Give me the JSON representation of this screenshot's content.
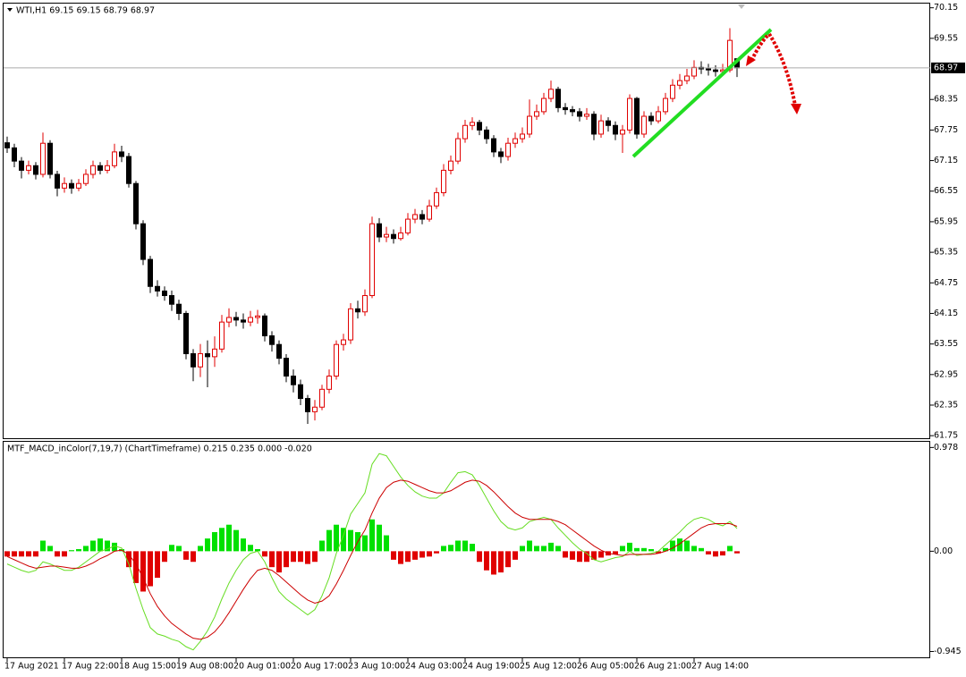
{
  "chart_data": [
    {
      "type": "candlestick",
      "title": "WTI,H1  69.15 69.15 68.79 68.97",
      "open": [
        67.5,
        67.4,
        67.14,
        66.96,
        67.05,
        66.88,
        67.49,
        66.88,
        66.61,
        66.7,
        66.61,
        66.7,
        66.88,
        67.05,
        66.96,
        67.05,
        67.32,
        67.23,
        66.7,
        65.91,
        65.21,
        64.68,
        64.59,
        64.5,
        64.33,
        64.15,
        63.36,
        63.1,
        63.36,
        63.3,
        63.45,
        63.98,
        64.07,
        64.02,
        63.98,
        64.07,
        64.1,
        63.71,
        63.54,
        63.27,
        62.92,
        62.75,
        62.48,
        62.22,
        62.31,
        62.66,
        62.92,
        63.54,
        63.63,
        64.24,
        64.18,
        64.5,
        65.91,
        65.65,
        65.7,
        65.62,
        65.73,
        66.0,
        66.09,
        66.0,
        66.26,
        66.52,
        66.96,
        67.14,
        67.58,
        67.84,
        67.9,
        67.75,
        67.58,
        67.32,
        67.23,
        67.49,
        67.58,
        67.67,
        68.02,
        68.11,
        68.37,
        68.55,
        68.19,
        68.15,
        68.11,
        68.02,
        68.06,
        67.67,
        67.93,
        67.84,
        67.67,
        67.75,
        68.37,
        67.67,
        68.02,
        67.93,
        68.11,
        68.37,
        68.63,
        68.72,
        68.81,
        68.98,
        68.95,
        68.93,
        68.9,
        68.93,
        69.15
      ],
      "high": [
        67.62,
        67.48,
        67.22,
        67.15,
        67.12,
        67.7,
        67.55,
        66.95,
        66.82,
        66.78,
        66.79,
        66.98,
        67.15,
        67.12,
        67.16,
        67.48,
        67.44,
        67.3,
        66.75,
        65.98,
        65.28,
        64.8,
        64.68,
        64.6,
        64.42,
        64.2,
        63.45,
        63.55,
        63.62,
        63.7,
        64.12,
        64.25,
        64.18,
        64.15,
        64.2,
        64.22,
        64.15,
        63.8,
        63.62,
        63.35,
        63.05,
        62.85,
        62.55,
        62.45,
        62.75,
        63.05,
        63.62,
        63.75,
        64.35,
        64.4,
        64.62,
        66.05,
        66.02,
        65.85,
        65.8,
        65.85,
        66.12,
        66.2,
        66.18,
        66.38,
        66.62,
        67.08,
        67.25,
        67.7,
        67.95,
        68.0,
        67.95,
        67.82,
        67.65,
        67.4,
        67.6,
        67.7,
        67.8,
        68.35,
        68.25,
        68.48,
        68.72,
        68.6,
        68.28,
        68.22,
        68.18,
        68.18,
        68.12,
        68.05,
        68.0,
        67.92,
        67.85,
        68.45,
        68.4,
        68.12,
        68.1,
        68.22,
        68.48,
        68.75,
        68.85,
        68.95,
        69.12,
        69.1,
        69.05,
        69.02,
        69.05,
        69.75,
        69.15
      ],
      "low": [
        67.3,
        67.02,
        66.8,
        66.88,
        66.78,
        66.82,
        66.8,
        66.45,
        66.52,
        66.5,
        66.55,
        66.65,
        66.8,
        66.88,
        66.9,
        67.0,
        67.12,
        66.62,
        65.8,
        65.1,
        64.55,
        64.48,
        64.4,
        64.2,
        64.02,
        63.25,
        62.82,
        62.9,
        62.7,
        63.1,
        63.38,
        63.88,
        63.9,
        63.85,
        63.9,
        63.95,
        63.6,
        63.4,
        63.15,
        62.8,
        62.6,
        62.35,
        61.98,
        62.05,
        62.25,
        62.58,
        62.85,
        63.42,
        63.55,
        64.05,
        64.1,
        64.45,
        65.55,
        65.55,
        65.52,
        65.58,
        65.68,
        65.92,
        65.9,
        65.95,
        66.2,
        66.45,
        66.88,
        67.08,
        67.5,
        67.75,
        67.65,
        67.48,
        67.22,
        67.1,
        67.15,
        67.4,
        67.5,
        67.6,
        67.95,
        68.05,
        68.3,
        68.1,
        68.05,
        68.02,
        67.92,
        67.95,
        67.55,
        67.6,
        67.72,
        67.55,
        67.3,
        67.68,
        67.58,
        67.6,
        67.85,
        67.88,
        68.05,
        68.3,
        68.55,
        68.65,
        68.75,
        68.85,
        68.82,
        68.8,
        68.82,
        68.88,
        68.79
      ],
      "close": [
        67.4,
        67.14,
        66.96,
        67.05,
        66.88,
        67.49,
        66.88,
        66.61,
        66.7,
        66.61,
        66.7,
        66.88,
        67.05,
        66.96,
        67.05,
        67.32,
        67.23,
        66.7,
        65.91,
        65.21,
        64.68,
        64.59,
        64.5,
        64.33,
        64.15,
        63.36,
        63.1,
        63.36,
        63.3,
        63.45,
        63.98,
        64.07,
        64.02,
        63.98,
        64.07,
        64.1,
        63.71,
        63.54,
        63.27,
        62.92,
        62.75,
        62.48,
        62.22,
        62.31,
        62.66,
        62.92,
        63.54,
        63.63,
        64.24,
        64.18,
        64.5,
        65.91,
        65.65,
        65.7,
        65.62,
        65.73,
        66.0,
        66.09,
        66.0,
        66.26,
        66.52,
        66.96,
        67.14,
        67.58,
        67.84,
        67.9,
        67.75,
        67.58,
        67.32,
        67.23,
        67.49,
        67.58,
        67.67,
        68.02,
        68.11,
        68.37,
        68.55,
        68.19,
        68.15,
        68.11,
        68.02,
        68.06,
        67.67,
        67.93,
        67.84,
        67.67,
        67.75,
        68.37,
        67.67,
        68.02,
        67.93,
        68.11,
        68.37,
        68.63,
        68.72,
        68.81,
        68.98,
        68.95,
        68.93,
        68.9,
        68.93,
        69.51,
        68.97
      ],
      "up_color": "#e00000",
      "down_color": "#000000",
      "last_price": 68.97,
      "ylim": [
        61.7,
        70.25
      ],
      "yticks": [
        70.15,
        69.55,
        68.35,
        67.75,
        67.15,
        66.55,
        65.95,
        65.35,
        64.75,
        64.15,
        63.55,
        62.95,
        62.35,
        61.75
      ],
      "xticks": [
        {
          "value": 0,
          "label": "17 Aug 2021"
        },
        {
          "value": 8,
          "label": "17 Aug 22:00"
        },
        {
          "value": 16,
          "label": "18 Aug 15:00"
        },
        {
          "value": 24,
          "label": "19 Aug 08:00"
        },
        {
          "value": 32,
          "label": "20 Aug 01:00"
        },
        {
          "value": 40,
          "label": "20 Aug 17:00"
        },
        {
          "value": 48,
          "label": "23 Aug 10:00"
        },
        {
          "value": 56,
          "label": "24 Aug 03:00"
        },
        {
          "value": 64,
          "label": "24 Aug 19:00"
        },
        {
          "value": 72,
          "label": "25 Aug 12:00"
        },
        {
          "value": 80,
          "label": "26 Aug 05:00"
        },
        {
          "value": 88,
          "label": "26 Aug 21:00"
        },
        {
          "value": 96,
          "label": "27 Aug 14:00"
        }
      ]
    },
    {
      "type": "macd",
      "title": "MTF_MACD_inColor(7,19,7) (ChartTimeframe) 0.215 0.235 0.000 -0.020",
      "histogram": [
        -0.05,
        -0.05,
        -0.05,
        -0.05,
        -0.05,
        0.1,
        0.05,
        -0.05,
        -0.05,
        0.01,
        0.02,
        0.05,
        0.1,
        0.12,
        0.1,
        0.08,
        0.02,
        -0.15,
        -0.3,
        -0.38,
        -0.33,
        -0.25,
        -0.1,
        0.06,
        0.05,
        -0.08,
        -0.1,
        0.05,
        0.12,
        0.18,
        0.22,
        0.25,
        0.2,
        0.12,
        0.06,
        0.02,
        -0.05,
        -0.15,
        -0.2,
        -0.15,
        -0.1,
        -0.1,
        -0.12,
        -0.1,
        0.1,
        0.2,
        0.25,
        0.22,
        0.2,
        0.18,
        0.15,
        0.3,
        0.25,
        0.15,
        -0.08,
        -0.12,
        -0.1,
        -0.08,
        -0.06,
        -0.05,
        -0.02,
        0.05,
        0.06,
        0.1,
        0.1,
        0.07,
        -0.1,
        -0.18,
        -0.22,
        -0.2,
        -0.15,
        -0.08,
        0.05,
        0.1,
        0.05,
        0.05,
        0.08,
        0.05,
        -0.06,
        -0.08,
        -0.1,
        -0.1,
        -0.08,
        -0.06,
        -0.04,
        -0.03,
        0.05,
        0.08,
        0.03,
        0.03,
        0.02,
        -0.02,
        0.03,
        0.1,
        0.12,
        0.1,
        0.05,
        0.03,
        -0.03,
        -0.05,
        -0.04,
        0.05,
        -0.02
      ],
      "pos_color": "#00e000",
      "neg_color": "#e00000",
      "series": [
        {
          "name": "MACD",
          "color": "#66dd22",
          "values": [
            -0.12,
            -0.15,
            -0.18,
            -0.2,
            -0.18,
            -0.1,
            -0.12,
            -0.15,
            -0.18,
            -0.18,
            -0.15,
            -0.1,
            -0.05,
            0.0,
            0.02,
            0.05,
            0.03,
            -0.12,
            -0.35,
            -0.55,
            -0.72,
            -0.78,
            -0.8,
            -0.83,
            -0.85,
            -0.9,
            -0.93,
            -0.85,
            -0.75,
            -0.62,
            -0.45,
            -0.3,
            -0.18,
            -0.08,
            -0.02,
            0.0,
            -0.1,
            -0.25,
            -0.38,
            -0.45,
            -0.5,
            -0.55,
            -0.6,
            -0.55,
            -0.42,
            -0.25,
            -0.02,
            0.15,
            0.35,
            0.45,
            0.55,
            0.82,
            0.92,
            0.9,
            0.8,
            0.7,
            0.62,
            0.56,
            0.52,
            0.5,
            0.5,
            0.55,
            0.65,
            0.74,
            0.75,
            0.72,
            0.62,
            0.5,
            0.38,
            0.28,
            0.22,
            0.2,
            0.22,
            0.28,
            0.3,
            0.32,
            0.3,
            0.22,
            0.15,
            0.08,
            0.02,
            -0.02,
            -0.08,
            -0.1,
            -0.08,
            -0.06,
            -0.05,
            0.0,
            -0.04,
            -0.03,
            -0.02,
            0.0,
            0.06,
            0.12,
            0.18,
            0.25,
            0.3,
            0.32,
            0.3,
            0.26,
            0.24,
            0.28,
            0.215
          ]
        },
        {
          "name": "Signal",
          "color": "#cc0000",
          "values": [
            -0.05,
            -0.08,
            -0.11,
            -0.14,
            -0.16,
            -0.15,
            -0.14,
            -0.14,
            -0.15,
            -0.16,
            -0.16,
            -0.14,
            -0.11,
            -0.07,
            -0.04,
            0.0,
            0.01,
            -0.03,
            -0.12,
            -0.25,
            -0.4,
            -0.52,
            -0.61,
            -0.68,
            -0.73,
            -0.78,
            -0.82,
            -0.83,
            -0.81,
            -0.76,
            -0.68,
            -0.58,
            -0.47,
            -0.36,
            -0.26,
            -0.18,
            -0.16,
            -0.18,
            -0.23,
            -0.29,
            -0.35,
            -0.41,
            -0.46,
            -0.49,
            -0.47,
            -0.42,
            -0.31,
            -0.18,
            -0.04,
            0.09,
            0.2,
            0.36,
            0.5,
            0.6,
            0.65,
            0.67,
            0.66,
            0.63,
            0.6,
            0.57,
            0.55,
            0.55,
            0.57,
            0.61,
            0.65,
            0.67,
            0.66,
            0.62,
            0.56,
            0.49,
            0.42,
            0.36,
            0.32,
            0.3,
            0.3,
            0.3,
            0.3,
            0.28,
            0.25,
            0.2,
            0.15,
            0.1,
            0.05,
            0.01,
            -0.02,
            -0.03,
            -0.04,
            -0.03,
            -0.03,
            -0.03,
            -0.03,
            -0.02,
            0.0,
            0.03,
            0.07,
            0.12,
            0.17,
            0.22,
            0.25,
            0.26,
            0.26,
            0.26,
            0.235
          ]
        }
      ],
      "ylim": [
        -1.0,
        1.04
      ],
      "yticks": [
        0.978,
        {
          "value": 0,
          "label": "0.00"
        },
        -0.945
      ]
    }
  ]
}
